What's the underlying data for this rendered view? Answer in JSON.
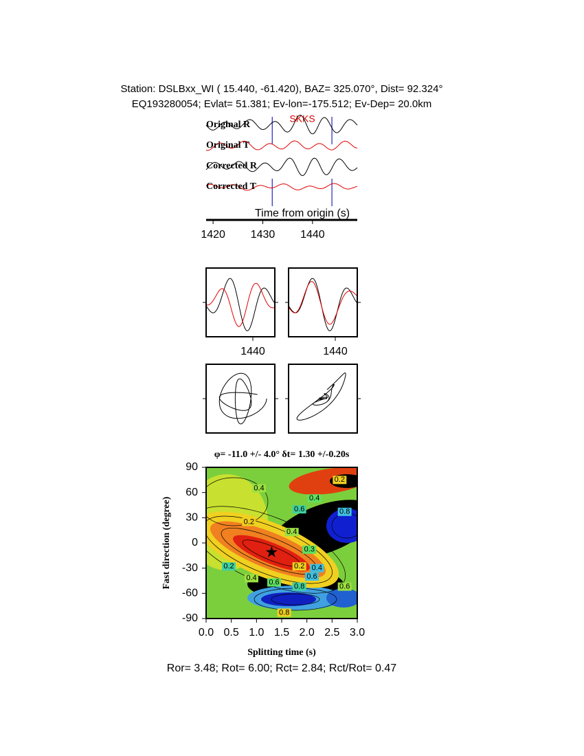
{
  "header": {
    "line1": "Station: DSLBxx_WI (  15.440,  -61.420), BAZ=  325.070°, Dist=   92.324°",
    "line2": "EQ193280054; Evlat=  51.381; Ev-lon=-175.512; Ev-Dep= 20.0km"
  },
  "waveforms": {
    "phase": "SKKS",
    "traces": [
      "Original R",
      "Original T",
      "Corrected R",
      "Corrected T"
    ],
    "xlabel": "Time from origin (s)",
    "xlim": [
      1418.6,
      1449
    ],
    "xticks": [
      1420,
      1430,
      1440
    ],
    "window": [
      1431.9,
      1443.9
    ]
  },
  "particle_motion": {
    "xticks": [
      1440,
      1440
    ]
  },
  "grid_search": {
    "title": "φ= -11.0 +/- 4.0° δt= 1.30 +/-0.20s",
    "xlabel": "Splitting time (s)",
    "ylabel": "Fast direction (degree)",
    "xlim": [
      0,
      3
    ],
    "ylim": [
      -90,
      90
    ],
    "xticks": [
      {
        "value": 0,
        "label": "0.0"
      },
      {
        "value": 0.5,
        "label": "0.5"
      },
      {
        "value": 1,
        "label": "1.0"
      },
      {
        "value": 1.5,
        "label": "1.5"
      },
      {
        "value": 2,
        "label": "2.0"
      },
      {
        "value": 2.5,
        "label": "2.5"
      },
      {
        "value": 3,
        "label": "3.0"
      }
    ],
    "yticks": [
      -90,
      -60,
      -30,
      0,
      30,
      60,
      90
    ],
    "best": {
      "x": 1.3,
      "y": -11
    },
    "contour_labels": [
      "0.2",
      "0.4",
      "0.4",
      "0.6",
      "0.8",
      "0.2",
      "0.4",
      "0.3",
      "0.2",
      "0.4",
      "0.2",
      "0.4",
      "0.6",
      "0.8",
      "0.6",
      "0.8",
      "0.6"
    ]
  },
  "footer": "Ror= 3.48; Rot= 6.00; Rct= 2.84; Rct/Rot= 0.47"
}
